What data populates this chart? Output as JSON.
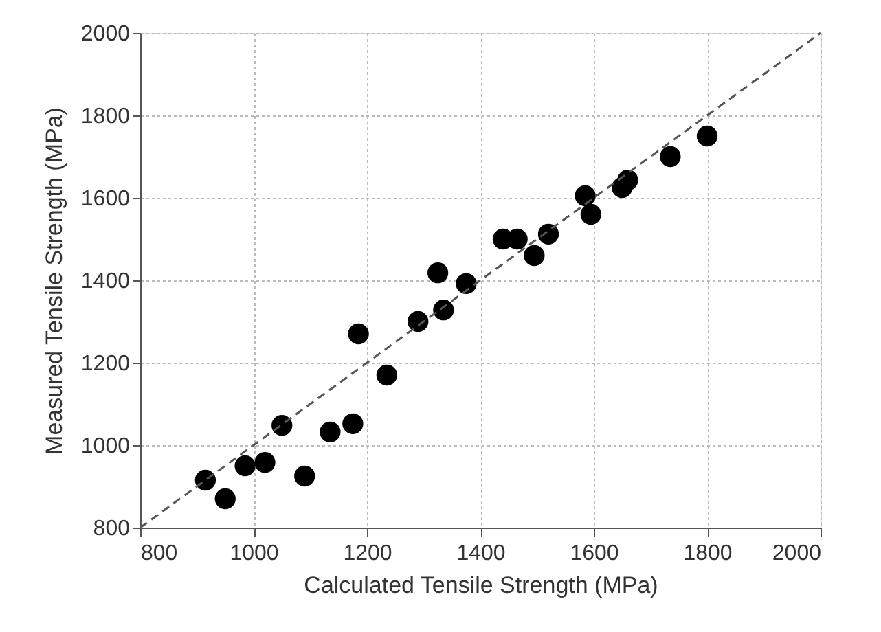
{
  "chart_data": {
    "type": "scatter",
    "xlabel": "Calculated Tensile Strength (MPa)",
    "ylabel": "Measured Tensile Strength (MPa)",
    "xlim": [
      800,
      2000
    ],
    "ylim": [
      800,
      2000
    ],
    "xticks": [
      800,
      1000,
      1200,
      1400,
      1600,
      1800,
      2000
    ],
    "yticks": [
      800,
      1000,
      1200,
      1400,
      1600,
      1800,
      2000
    ],
    "grid": true,
    "marker": "circle",
    "series": [
      {
        "color": "#000000",
        "x": [
          915,
          950,
          985,
          1020,
          1050,
          1090,
          1135,
          1175,
          1185,
          1235,
          1290,
          1325,
          1335,
          1375,
          1440,
          1465,
          1495,
          1520,
          1585,
          1595,
          1650,
          1660,
          1735,
          1800
        ],
        "values": [
          915,
          870,
          950,
          958,
          1048,
          925,
          1032,
          1052,
          1270,
          1170,
          1300,
          1418,
          1328,
          1392,
          1500,
          1500,
          1460,
          1512,
          1605,
          1560,
          1625,
          1643,
          1700,
          1750
        ]
      },
      {
        "type": "line",
        "color": "#555555",
        "line_style": "dashed",
        "marker": "none",
        "x": [
          800,
          2000
        ],
        "values": [
          800,
          2000
        ]
      }
    ]
  }
}
